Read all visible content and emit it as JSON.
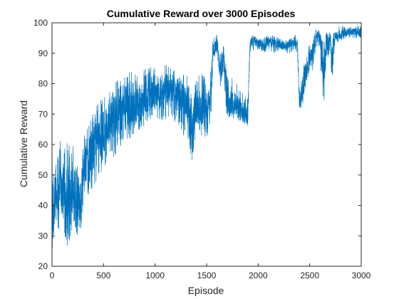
{
  "chart_data": {
    "type": "line",
    "title": "Cumulative Reward over 3000 Episodes",
    "xlabel": "Episode",
    "ylabel": "Cumulative Reward",
    "xlim": [
      0,
      3000
    ],
    "ylim": [
      20,
      100
    ],
    "xticks": [
      0,
      500,
      1000,
      1500,
      2000,
      2500,
      3000
    ],
    "yticks": [
      20,
      30,
      40,
      50,
      60,
      70,
      80,
      90,
      100
    ],
    "grid": false,
    "legend": "none",
    "colors": {
      "series": "#0072BD",
      "axis": "#262626",
      "background": "#ffffff"
    },
    "series": [
      {
        "x": [
          0,
          20,
          40,
          60,
          80,
          100,
          120,
          140,
          160,
          180,
          200,
          220,
          240,
          260,
          280,
          300,
          340,
          380,
          420,
          460,
          500,
          550,
          600,
          650,
          700,
          750,
          800,
          850,
          900,
          950,
          1000,
          1050,
          1100,
          1150,
          1200,
          1250,
          1300,
          1340,
          1360,
          1380,
          1400,
          1450,
          1500,
          1540,
          1560,
          1580,
          1600,
          1620,
          1640,
          1660,
          1680,
          1700,
          1720,
          1750,
          1800,
          1850,
          1880,
          1900,
          1920,
          1950,
          2000,
          2050,
          2100,
          2150,
          2200,
          2250,
          2300,
          2350,
          2380,
          2400,
          2420,
          2440,
          2460,
          2480,
          2500,
          2530,
          2560,
          2580,
          2600,
          2620,
          2640,
          2660,
          2680,
          2700,
          2720,
          2740,
          2760,
          2780,
          2800,
          2850,
          2900,
          2950,
          3000
        ],
        "y": [
          40,
          38,
          45,
          42,
          48,
          44,
          50,
          42,
          46,
          40,
          48,
          44,
          38,
          42,
          36,
          52,
          55,
          58,
          60,
          62,
          64,
          66,
          68,
          70,
          71,
          72,
          72,
          74,
          75,
          76,
          77,
          78,
          78,
          79,
          76,
          76,
          74,
          68,
          64,
          70,
          72,
          73,
          72,
          74,
          90,
          92,
          92,
          88,
          84,
          90,
          82,
          74,
          72,
          74,
          73,
          70,
          70,
          69,
          93,
          94,
          93,
          92,
          94,
          93,
          93,
          92,
          93,
          94,
          93,
          74,
          76,
          80,
          84,
          86,
          88,
          90,
          95,
          96,
          96,
          88,
          82,
          92,
          94,
          95,
          86,
          94,
          96,
          96,
          96,
          97,
          97,
          97,
          97
        ],
        "min": [
          24,
          30,
          32,
          30,
          33,
          30,
          32,
          24,
          28,
          28,
          33,
          30,
          26,
          30,
          28,
          38,
          42,
          44,
          46,
          50,
          52,
          54,
          56,
          58,
          60,
          62,
          62,
          64,
          66,
          66,
          68,
          68,
          68,
          68,
          64,
          64,
          62,
          58,
          54,
          60,
          60,
          62,
          62,
          66,
          86,
          88,
          88,
          82,
          76,
          84,
          75,
          68,
          67,
          68,
          68,
          67,
          66,
          66,
          90,
          91,
          90,
          90,
          91,
          90,
          91,
          90,
          90,
          91,
          90,
          72,
          72,
          74,
          78,
          82,
          84,
          84,
          92,
          92,
          92,
          74,
          74,
          86,
          88,
          92,
          74,
          90,
          93,
          94,
          94,
          95,
          95,
          95,
          95
        ],
        "max": [
          56,
          54,
          58,
          56,
          62,
          58,
          64,
          60,
          62,
          56,
          62,
          58,
          52,
          56,
          48,
          62,
          66,
          70,
          72,
          74,
          76,
          78,
          80,
          82,
          82,
          84,
          84,
          84,
          85,
          86,
          86,
          86,
          86,
          86,
          84,
          84,
          84,
          80,
          76,
          80,
          82,
          84,
          84,
          84,
          96,
          96,
          96,
          94,
          90,
          95,
          88,
          84,
          80,
          82,
          80,
          78,
          76,
          76,
          96,
          96,
          95,
          95,
          96,
          96,
          95,
          94,
          95,
          96,
          96,
          80,
          84,
          88,
          90,
          92,
          93,
          94,
          98,
          98,
          98,
          96,
          94,
          97,
          98,
          98,
          96,
          98,
          98,
          99,
          99,
          99,
          99,
          99,
          99
        ]
      }
    ]
  }
}
